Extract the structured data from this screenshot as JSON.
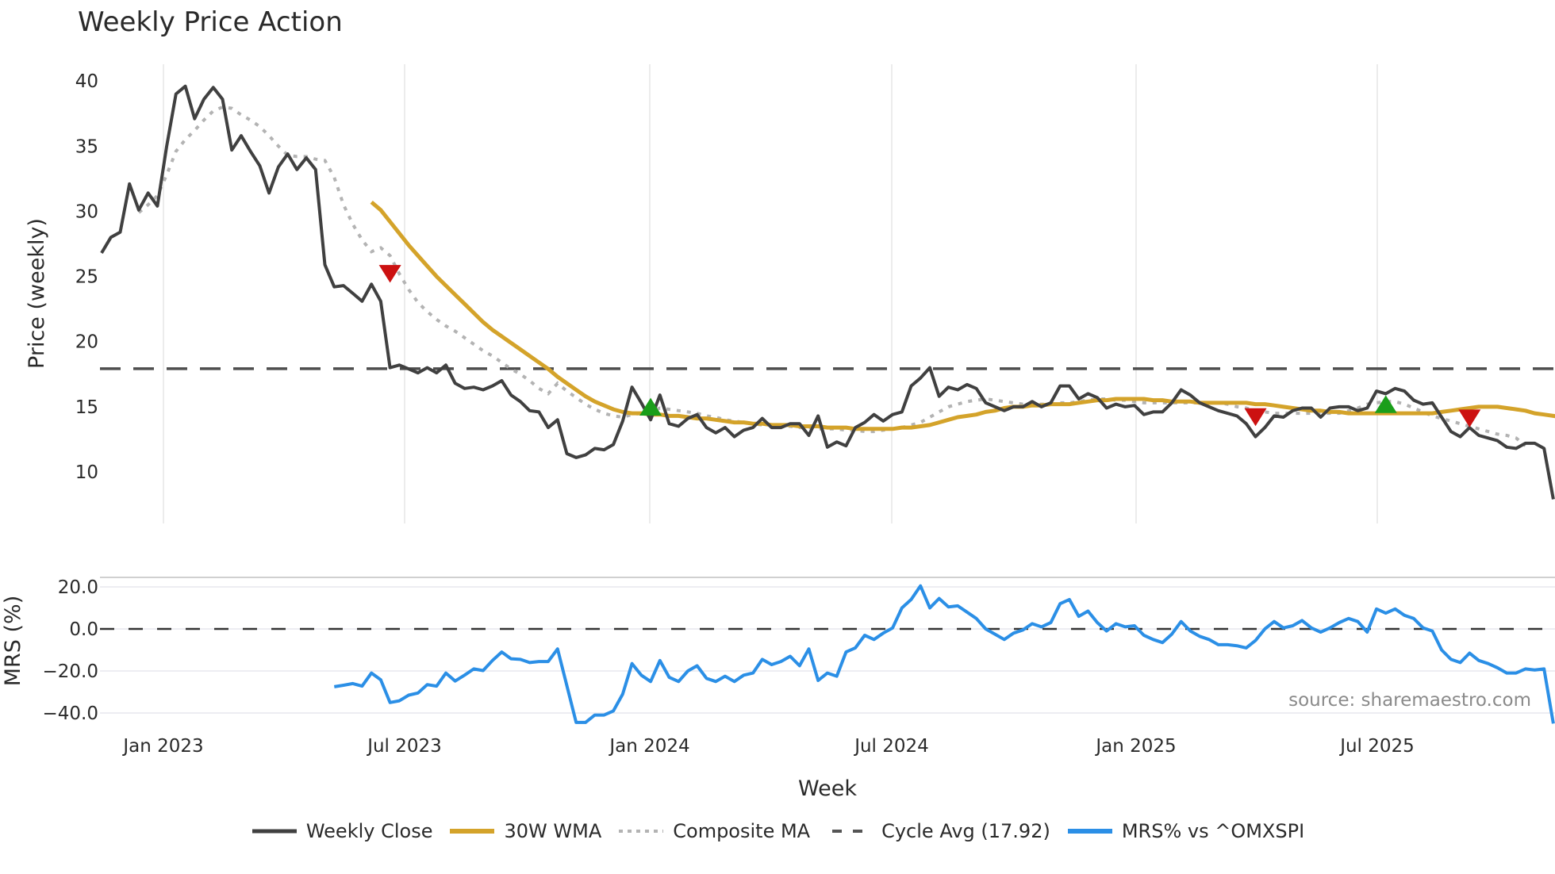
{
  "title": "Weekly Price Action",
  "source_note": "source: sharemaestro.com",
  "legend": [
    {
      "label": "Weekly Close",
      "color": "#404040",
      "style": "solid"
    },
    {
      "label": "30W WMA",
      "color": "#d4a32a",
      "style": "solid"
    },
    {
      "label": "Composite MA",
      "color": "#b3b3b3",
      "style": "dotted"
    },
    {
      "label": "Cycle Avg (17.92)",
      "color": "#555555",
      "style": "dashed"
    },
    {
      "label": "MRS% vs ^OMXSPI",
      "color": "#2b8fe6",
      "style": "solid"
    }
  ],
  "chart_data": [
    {
      "type": "line",
      "title": "Weekly Price Action",
      "xlabel": "",
      "ylabel": "Price (weekly)",
      "ylim": [
        5.5,
        41.5
      ],
      "yticks": [
        10,
        15,
        20,
        25,
        30,
        35,
        40
      ],
      "xticks": [
        "Jan 2023",
        "Jul 2023",
        "Jan 2024",
        "Jul 2024",
        "Jan 2025",
        "Jul 2025"
      ],
      "x_start": "Nov 2022 (weekly)",
      "grid": "vertical",
      "cycle_avg": 17.92,
      "series": [
        {
          "name": "Weekly Close",
          "offset": 0,
          "values": [
            26.8,
            28.0,
            28.4,
            32.1,
            30.1,
            31.4,
            30.4,
            35.0,
            39.0,
            39.6,
            37.1,
            38.6,
            39.5,
            38.6,
            34.7,
            35.8,
            34.6,
            33.5,
            31.4,
            33.4,
            34.4,
            33.2,
            34.1,
            33.2,
            25.9,
            24.2,
            24.3,
            23.7,
            23.1,
            24.4,
            23.1,
            18.0,
            18.2,
            17.9,
            17.6,
            18.0,
            17.6,
            18.2,
            16.8,
            16.4,
            16.5,
            16.3,
            16.6,
            17.0,
            15.9,
            15.4,
            14.7,
            14.6,
            13.4,
            14.0,
            11.4,
            11.1,
            11.3,
            11.8,
            11.7,
            12.1,
            13.9,
            16.5,
            15.3,
            14.0,
            15.9,
            13.7,
            13.5,
            14.1,
            14.4,
            13.4,
            13.0,
            13.4,
            12.7,
            13.2,
            13.4,
            14.1,
            13.4,
            13.4,
            13.7,
            13.7,
            12.8,
            14.3,
            11.9,
            12.3,
            12.0,
            13.4,
            13.8,
            14.4,
            13.9,
            14.4,
            14.6,
            16.6,
            17.2,
            18.0,
            15.8,
            16.5,
            16.3,
            16.7,
            16.4,
            15.3,
            15.0,
            14.7,
            15.0,
            15.0,
            15.4,
            15.0,
            15.3,
            16.6,
            16.6,
            15.6,
            16.0,
            15.7,
            14.9,
            15.2,
            15.0,
            15.1,
            14.4,
            14.6,
            14.6,
            15.3,
            16.3,
            15.9,
            15.3,
            15.0,
            14.7,
            14.5,
            14.3,
            13.7,
            12.7,
            13.4,
            14.3,
            14.2,
            14.7,
            14.9,
            14.9,
            14.2,
            14.9,
            15.0,
            15.0,
            14.7,
            14.9,
            16.2,
            16.0,
            16.4,
            16.2,
            15.5,
            15.2,
            15.3,
            14.2,
            13.1,
            12.7,
            13.4,
            12.8,
            12.6,
            12.4,
            11.9,
            11.8,
            12.2,
            12.2,
            11.8,
            7.9
          ]
        },
        {
          "name": "30W WMA",
          "offset": 29,
          "values": [
            30.7,
            30.1,
            29.2,
            28.3,
            27.4,
            26.6,
            25.8,
            25.0,
            24.3,
            23.6,
            22.9,
            22.2,
            21.5,
            20.9,
            20.4,
            19.9,
            19.4,
            18.9,
            18.4,
            17.9,
            17.3,
            16.8,
            16.3,
            15.8,
            15.4,
            15.1,
            14.8,
            14.6,
            14.5,
            14.5,
            14.4,
            14.4,
            14.3,
            14.3,
            14.2,
            14.1,
            14.1,
            14.0,
            13.9,
            13.8,
            13.8,
            13.7,
            13.7,
            13.6,
            13.6,
            13.6,
            13.5,
            13.5,
            13.5,
            13.4,
            13.4,
            13.4,
            13.3,
            13.3,
            13.3,
            13.3,
            13.3,
            13.4,
            13.4,
            13.5,
            13.6,
            13.8,
            14.0,
            14.2,
            14.3,
            14.4,
            14.6,
            14.7,
            14.9,
            15.0,
            15.0,
            15.1,
            15.1,
            15.2,
            15.2,
            15.2,
            15.3,
            15.4,
            15.5,
            15.5,
            15.6,
            15.6,
            15.6,
            15.6,
            15.5,
            15.5,
            15.4,
            15.4,
            15.4,
            15.3,
            15.3,
            15.3,
            15.3,
            15.3,
            15.3,
            15.2,
            15.2,
            15.1,
            15.0,
            14.9,
            14.8,
            14.7,
            14.7,
            14.6,
            14.6,
            14.5,
            14.5,
            14.5,
            14.5,
            14.5,
            14.5,
            14.5,
            14.5,
            14.5,
            14.5,
            14.6,
            14.7,
            14.8,
            14.9,
            15.0,
            15.0,
            15.0,
            14.9,
            14.8,
            14.7,
            14.5,
            14.4,
            14.3,
            14.2,
            14.1,
            14.0,
            13.9,
            13.8,
            13.7,
            13.5,
            13.1
          ]
        },
        {
          "name": "Composite MA",
          "offset": 4,
          "values": [
            29.9,
            30.5,
            31.2,
            32.8,
            34.6,
            35.5,
            36.2,
            37.0,
            37.7,
            38.0,
            37.9,
            37.4,
            37.0,
            36.5,
            35.8,
            35.0,
            34.3,
            34.2,
            34.2,
            34.0,
            33.9,
            32.6,
            30.5,
            29.0,
            27.8,
            26.9,
            27.2,
            26.6,
            25.2,
            24.0,
            23.0,
            22.3,
            21.7,
            21.2,
            20.8,
            20.3,
            19.8,
            19.3,
            18.9,
            18.4,
            17.9,
            17.5,
            17.0,
            16.4,
            16.0,
            16.8,
            16.2,
            15.7,
            15.2,
            14.8,
            14.5,
            14.3,
            14.2,
            14.4,
            14.5,
            14.6,
            14.9,
            14.8,
            14.7,
            14.6,
            14.5,
            14.3,
            14.2,
            14.0,
            13.9,
            13.8,
            13.7,
            13.6,
            13.6,
            13.5,
            13.5,
            13.4,
            13.4,
            13.3,
            13.3,
            13.3,
            13.2,
            13.2,
            13.1,
            13.1,
            13.2,
            13.3,
            13.4,
            13.6,
            13.8,
            14.2,
            14.6,
            15.0,
            15.2,
            15.4,
            15.5,
            15.6,
            15.5,
            15.4,
            15.3,
            15.2,
            15.2,
            15.2,
            15.2,
            15.3,
            15.3,
            15.4,
            15.5,
            15.6,
            15.6,
            15.5,
            15.5,
            15.4,
            15.3,
            15.3,
            15.3,
            15.3,
            15.3,
            15.3,
            15.3,
            15.3,
            15.3,
            15.2,
            15.0,
            14.9,
            14.7,
            14.6,
            14.5,
            14.5,
            14.5,
            14.5,
            14.5,
            14.5,
            14.5,
            14.5,
            14.7,
            14.9,
            15.2,
            15.3,
            15.4,
            15.4,
            15.2,
            14.9,
            14.6,
            14.3,
            14.1,
            13.9,
            13.7,
            13.5,
            13.3,
            13.1,
            12.9,
            12.8,
            12.6,
            12.0
          ]
        },
        {
          "name": "Cycle Avg (17.92)",
          "constant": 17.92
        }
      ],
      "markers": [
        {
          "type": "sell",
          "shape": "triangle-down",
          "color": "#cc1111",
          "index": 31,
          "value": 25.2
        },
        {
          "type": "buy",
          "shape": "triangle-up",
          "color": "#1a9e1a",
          "index": 59,
          "value": 15.0
        },
        {
          "type": "sell",
          "shape": "triangle-down",
          "color": "#cc1111",
          "index": 124,
          "value": 14.2
        },
        {
          "type": "buy",
          "shape": "triangle-up",
          "color": "#1a9e1a",
          "index": 138,
          "value": 15.2
        },
        {
          "type": "sell",
          "shape": "triangle-down",
          "color": "#cc1111",
          "index": 147,
          "value": 14.1
        }
      ]
    },
    {
      "type": "line",
      "title": "",
      "xlabel": "Week",
      "ylabel": "MRS (%)",
      "ylim": [
        -45,
        24
      ],
      "yticks": [
        "20.0",
        "0.0",
        "−20.0",
        "−40.0"
      ],
      "ytick_values": [
        20,
        0,
        -20,
        -40
      ],
      "xticks": [
        "Jan 2023",
        "Jul 2023",
        "Jan 2024",
        "Jul 2024",
        "Jan 2025",
        "Jul 2025"
      ],
      "zero_line": 0,
      "series": [
        {
          "name": "MRS% vs ^OMXSPI",
          "offset": 25,
          "values": [
            -27.5,
            -26.8,
            -26.0,
            -27.2,
            -21.0,
            -24.2,
            -35.0,
            -34.2,
            -31.5,
            -30.5,
            -26.5,
            -27.2,
            -21.0,
            -24.8,
            -22.0,
            -19.0,
            -19.8,
            -15.0,
            -11.0,
            -14.2,
            -14.5,
            -16.0,
            -15.5,
            -15.5,
            -9.5,
            -27.0,
            -44.5,
            -44.5,
            -41.0,
            -41.0,
            -39.0,
            -31.0,
            -16.5,
            -22.0,
            -25.0,
            -15.0,
            -23.0,
            -25.0,
            -20.0,
            -17.5,
            -23.5,
            -25.0,
            -22.5,
            -25.0,
            -22.0,
            -21.0,
            -14.5,
            -17.0,
            -15.5,
            -13.0,
            -17.5,
            -9.5,
            -24.5,
            -21.0,
            -22.5,
            -11.0,
            -9.0,
            -3.0,
            -5.0,
            -2.0,
            0.5,
            10.0,
            14.0,
            20.5,
            10.0,
            14.5,
            10.5,
            11.0,
            8.0,
            5.0,
            0.0,
            -2.5,
            -5.0,
            -2.0,
            -0.5,
            2.5,
            1.0,
            3.0,
            12.0,
            14.0,
            6.0,
            8.5,
            3.0,
            -1.0,
            2.5,
            1.0,
            1.5,
            -3.0,
            -5.0,
            -6.5,
            -2.5,
            3.5,
            -1.0,
            -3.5,
            -5.0,
            -7.5,
            -7.5,
            -8.0,
            -9.0,
            -5.5,
            0.0,
            3.5,
            0.5,
            1.5,
            4.0,
            0.5,
            -1.5,
            0.5,
            3.0,
            5.0,
            3.5,
            -1.5,
            9.5,
            7.5,
            9.5,
            6.5,
            5.0,
            0.5,
            -1.0,
            -10.0,
            -14.5,
            -16.0,
            -11.5,
            -15.0,
            -16.5,
            -18.5,
            -21.0,
            -21.0,
            -19.0,
            -19.5,
            -19.0,
            -45.0
          ]
        }
      ]
    }
  ],
  "axes": {
    "price_ylabel": "Price (weekly)",
    "mrs_ylabel": "MRS (%)",
    "xlabel": "Week"
  }
}
